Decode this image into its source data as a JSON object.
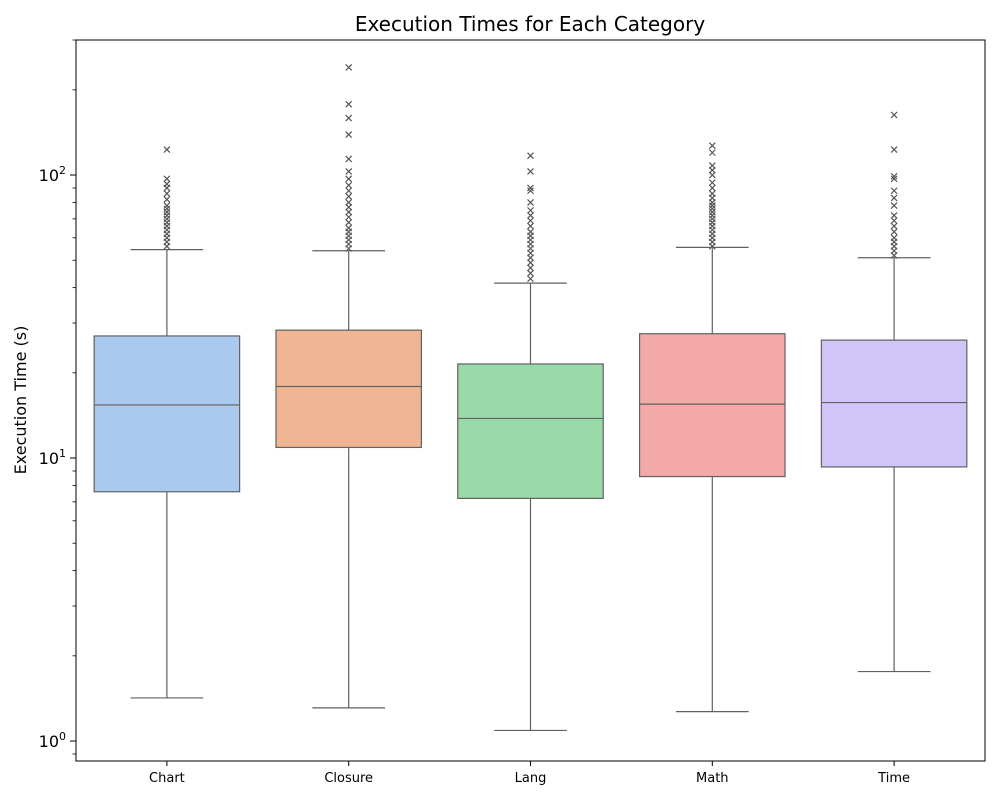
{
  "chart_data": {
    "type": "box",
    "title": "Execution Times for Each Category",
    "xlabel": "",
    "ylabel": "Execution Time (s)",
    "yscale": "log",
    "ylim": [
      0.85,
      300
    ],
    "yticks": [
      {
        "value": 1,
        "base": "10",
        "exp": "0"
      },
      {
        "value": 10,
        "base": "10",
        "exp": "1"
      },
      {
        "value": 100,
        "base": "10",
        "exp": "2"
      }
    ],
    "grid": false,
    "legend": "none",
    "categories": [
      "Chart",
      "Closure",
      "Lang",
      "Math",
      "Time"
    ],
    "colors": [
      "#abc9ee",
      "#f0b693",
      "#98dba8",
      "#f2a9a8",
      "#d1c4f6"
    ],
    "boxes": [
      {
        "category": "Chart",
        "whislo": 1.42,
        "q1": 7.6,
        "med": 15.4,
        "q3": 27.0,
        "whishi": 54.5,
        "fliers": [
          56,
          58,
          60,
          62,
          64,
          66,
          68,
          70,
          72,
          74,
          76,
          78,
          82,
          86,
          90,
          93,
          97,
          123
        ]
      },
      {
        "category": "Closure",
        "whislo": 1.31,
        "q1": 10.9,
        "med": 17.9,
        "q3": 28.3,
        "whishi": 54.0,
        "fliers": [
          55,
          57,
          59,
          61,
          63,
          65,
          68,
          71,
          74,
          77,
          80,
          84,
          88,
          92,
          97,
          103,
          114,
          139,
          159,
          178,
          240
        ]
      },
      {
        "category": "Lang",
        "whislo": 1.09,
        "q1": 7.2,
        "med": 13.8,
        "q3": 21.5,
        "whishi": 41.5,
        "fliers": [
          43,
          45,
          47,
          49,
          51,
          53,
          55,
          57,
          59,
          61,
          63,
          66,
          69,
          72,
          75,
          80,
          88,
          90,
          103,
          117
        ]
      },
      {
        "category": "Math",
        "whislo": 1.27,
        "q1": 8.6,
        "med": 15.5,
        "q3": 27.5,
        "whishi": 55.5,
        "fliers": [
          56,
          58,
          60,
          62,
          64,
          66,
          68,
          70,
          72,
          74,
          76,
          78,
          80,
          83,
          86,
          90,
          94,
          100,
          104,
          108,
          120,
          127
        ]
      },
      {
        "category": "Time",
        "whislo": 1.76,
        "q1": 9.3,
        "med": 15.7,
        "q3": 26.1,
        "whishi": 51.0,
        "fliers": [
          52,
          54,
          56,
          58,
          60,
          63,
          66,
          69,
          72,
          78,
          83,
          88,
          97,
          99,
          123,
          163
        ]
      }
    ]
  }
}
